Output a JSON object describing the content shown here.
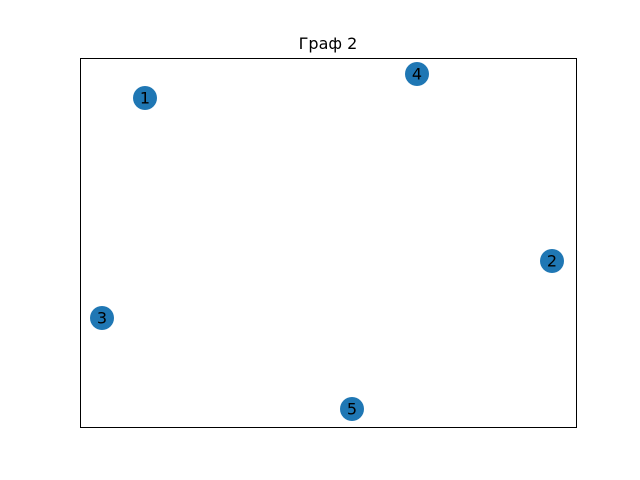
{
  "title": "Граф 2",
  "node_color": "#1f77b4",
  "frame_color": "#000000",
  "nodes": [
    {
      "label": "1"
    },
    {
      "label": "2"
    },
    {
      "label": "3"
    },
    {
      "label": "4"
    },
    {
      "label": "5"
    }
  ],
  "edges": []
}
